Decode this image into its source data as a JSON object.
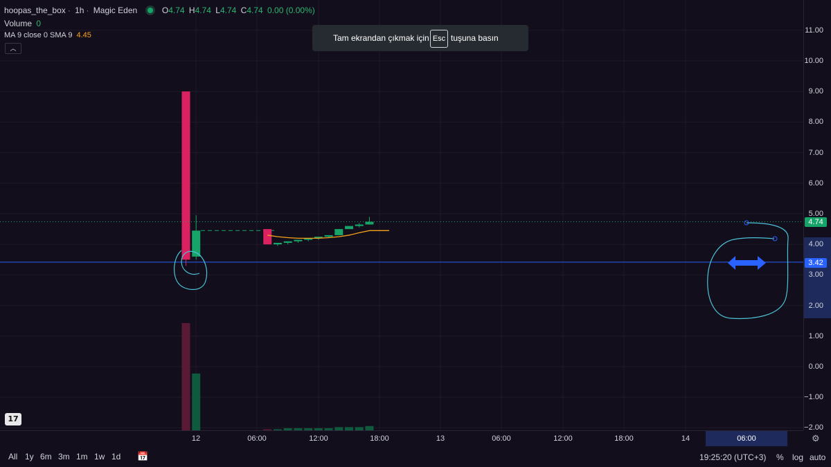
{
  "legend": {
    "symbol": "hoopas_the_box",
    "interval": "1h",
    "exchange": "Magic Eden",
    "ohlc": {
      "o_label": "O",
      "o": "4.74",
      "h_label": "H",
      "h": "4.74",
      "l_label": "L",
      "l": "4.74",
      "c_label": "C",
      "c": "4.74",
      "change": "0.00 (0.00%)"
    },
    "volume_label": "Volume",
    "volume_value": "0",
    "ma_label": "MA 9 close 0 SMA 9",
    "ma_value": "4.45",
    "collapse_icon": "chevron-up-icon"
  },
  "toast": {
    "before": "Tam ekrandan çıkmak için",
    "key": "Esc",
    "after": "tuşuna basın"
  },
  "price_axis": {
    "ticks": [
      "11.00",
      "10.00",
      "9.00",
      "8.00",
      "7.00",
      "6.00",
      "5.00",
      "4.00",
      "3.00",
      "2.00",
      "1.00",
      "0.00",
      "−1.00",
      "−2.00"
    ],
    "current_price": "4.74",
    "crosshair_price": "3.42"
  },
  "time_axis": {
    "ticks": [
      "12",
      "06:00",
      "12:00",
      "18:00",
      "13",
      "06:00",
      "12:00",
      "18:00",
      "14"
    ],
    "crosshair_time": "06:00"
  },
  "bottom_bar": {
    "ranges": [
      "All",
      "1y",
      "6m",
      "3m",
      "1m",
      "1w",
      "1d"
    ],
    "compare_icon": "calendar-range-icon",
    "clock": "19:25:20 (UTC+3)",
    "percent": "%",
    "log": "log",
    "auto": "auto"
  },
  "colors": {
    "up": "#16a468",
    "down": "#d9225f",
    "ma": "#f7a21b",
    "background": "#130e1b",
    "crosshair": "#2962ff",
    "drawing": "#4cc3d9"
  },
  "chart_data": {
    "type": "candlestick",
    "price_range": [
      -2,
      11
    ],
    "candles": [
      {
        "time": "12 00:00",
        "open": 9.0,
        "high": 9.0,
        "low": 3.3,
        "close": 3.5
      },
      {
        "time": "12 01:00",
        "open": 3.6,
        "high": 4.95,
        "low": 3.5,
        "close": 4.45
      },
      {
        "time": "12 08:00",
        "open": 4.5,
        "high": 4.5,
        "low": 4.0,
        "close": 4.0
      },
      {
        "time": "12 09:00",
        "open": 4.0,
        "high": 4.05,
        "low": 3.95,
        "close": 4.05
      },
      {
        "time": "12 10:00",
        "open": 4.05,
        "high": 4.1,
        "low": 4.0,
        "close": 4.1
      },
      {
        "time": "12 11:00",
        "open": 4.1,
        "high": 4.15,
        "low": 4.05,
        "close": 4.15
      },
      {
        "time": "12 12:00",
        "open": 4.15,
        "high": 4.2,
        "low": 4.1,
        "close": 4.2
      },
      {
        "time": "12 13:00",
        "open": 4.2,
        "high": 4.25,
        "low": 4.15,
        "close": 4.25
      },
      {
        "time": "12 14:00",
        "open": 4.25,
        "high": 4.3,
        "low": 4.2,
        "close": 4.3
      },
      {
        "time": "12 15:00",
        "open": 4.3,
        "high": 4.5,
        "low": 4.3,
        "close": 4.5
      },
      {
        "time": "12 16:00",
        "open": 4.5,
        "high": 4.6,
        "low": 4.5,
        "close": 4.6
      },
      {
        "time": "12 17:00",
        "open": 4.6,
        "high": 4.7,
        "low": 4.55,
        "close": 4.65
      },
      {
        "time": "12 18:00",
        "open": 4.65,
        "high": 4.9,
        "low": 4.65,
        "close": 4.74
      }
    ],
    "volume": [
      100,
      53,
      1,
      1,
      2,
      2,
      2,
      2,
      2,
      3,
      3,
      3,
      4
    ],
    "ma": {
      "name": "MA 9",
      "values": [
        null,
        null,
        4.3,
        4.25,
        4.22,
        4.2,
        4.2,
        4.2,
        4.22,
        4.25,
        4.3,
        4.38,
        4.45
      ]
    }
  }
}
